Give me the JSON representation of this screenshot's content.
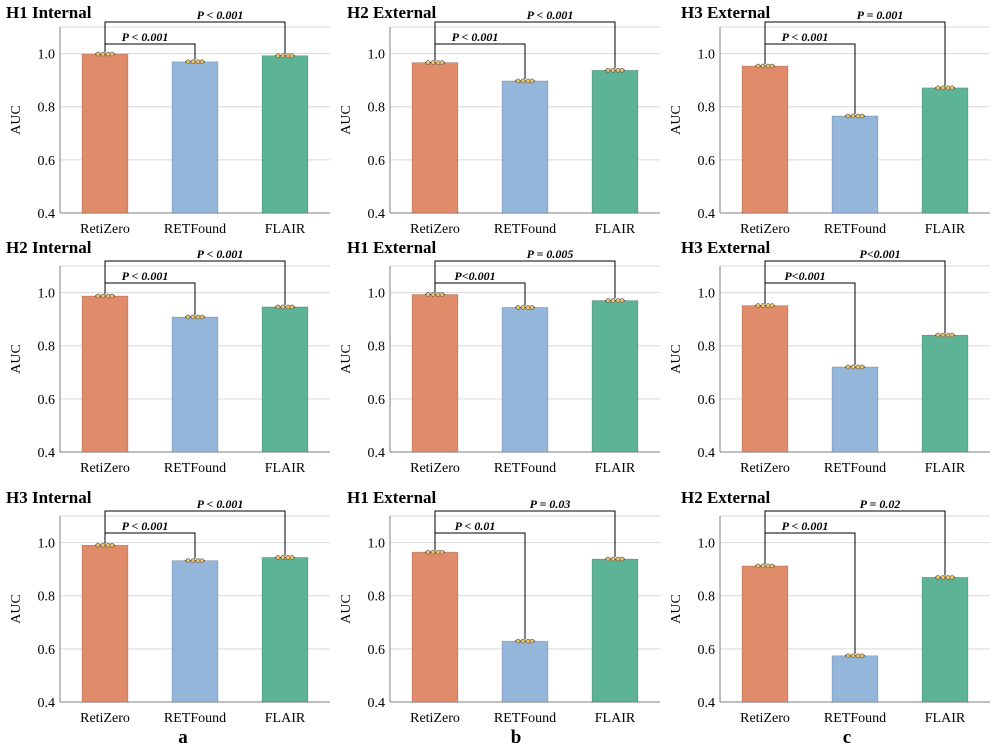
{
  "colors": {
    "RetiZero": "#e08b69",
    "RETFound": "#94b6da",
    "FLAIR": "#5db396",
    "grid": "#d9d9d9",
    "axis": "#7f7f7f",
    "bracket": "#000000"
  },
  "column_labels": [
    "a",
    "b",
    "c"
  ],
  "chart_data": [
    {
      "type": "bar",
      "title": "H1 Internal",
      "ylabel": "AUC",
      "ylim": [
        0.4,
        1.1
      ],
      "yticks": [
        "0.4",
        "0.6",
        "0.8",
        "1.0"
      ],
      "categories": [
        "RetiZero",
        "RETFound",
        "FLAIR"
      ],
      "values": [
        0.998,
        0.969,
        0.992
      ],
      "annotations": [
        {
          "from": 0,
          "to": 1,
          "label": "P < 0.001",
          "level": "low"
        },
        {
          "from": 0,
          "to": 2,
          "label": "P < 0.001",
          "level": "high"
        }
      ]
    },
    {
      "type": "bar",
      "title": "H2 External",
      "ylabel": "AUC",
      "ylim": [
        0.4,
        1.1
      ],
      "yticks": [
        "0.4",
        "0.6",
        "0.8",
        "1.0"
      ],
      "categories": [
        "RetiZero",
        "RETFound",
        "FLAIR"
      ],
      "values": [
        0.966,
        0.897,
        0.937
      ],
      "annotations": [
        {
          "from": 0,
          "to": 1,
          "label": "P < 0.001",
          "level": "low"
        },
        {
          "from": 0,
          "to": 2,
          "label": "P < 0.001",
          "level": "high"
        }
      ]
    },
    {
      "type": "bar",
      "title": "H3 External",
      "ylabel": "AUC",
      "ylim": [
        0.4,
        1.1
      ],
      "yticks": [
        "0.4",
        "0.6",
        "0.8",
        "1.0"
      ],
      "categories": [
        "RetiZero",
        "RETFound",
        "FLAIR"
      ],
      "values": [
        0.953,
        0.765,
        0.871
      ],
      "annotations": [
        {
          "from": 0,
          "to": 1,
          "label": "P < 0.001",
          "level": "low"
        },
        {
          "from": 0,
          "to": 2,
          "label": "P = 0.001",
          "level": "high"
        }
      ]
    },
    {
      "type": "bar",
      "title": "H2 Internal",
      "ylabel": "AUC",
      "ylim": [
        0.4,
        1.1
      ],
      "yticks": [
        "0.4",
        "0.6",
        "0.8",
        "1.0"
      ],
      "categories": [
        "RetiZero",
        "RETFound",
        "FLAIR"
      ],
      "values": [
        0.987,
        0.908,
        0.946
      ],
      "annotations": [
        {
          "from": 0,
          "to": 1,
          "label": "P < 0.001",
          "level": "low"
        },
        {
          "from": 0,
          "to": 2,
          "label": "P < 0.001",
          "level": "high"
        }
      ]
    },
    {
      "type": "bar",
      "title": "H1 External",
      "ylabel": "AUC",
      "ylim": [
        0.4,
        1.1
      ],
      "yticks": [
        "0.4",
        "0.6",
        "0.8",
        "1.0"
      ],
      "categories": [
        "RetiZero",
        "RETFound",
        "FLAIR"
      ],
      "values": [
        0.993,
        0.944,
        0.97
      ],
      "annotations": [
        {
          "from": 0,
          "to": 1,
          "label": "P<0.001",
          "level": "low"
        },
        {
          "from": 0,
          "to": 2,
          "label": "P = 0.005",
          "level": "high"
        }
      ]
    },
    {
      "type": "bar",
      "title": "H3 External",
      "ylabel": "AUC",
      "ylim": [
        0.4,
        1.1
      ],
      "yticks": [
        "0.4",
        "0.6",
        "0.8",
        "1.0"
      ],
      "categories": [
        "RetiZero",
        "RETFound",
        "FLAIR"
      ],
      "values": [
        0.951,
        0.72,
        0.84
      ],
      "annotations": [
        {
          "from": 0,
          "to": 1,
          "label": "P<0.001",
          "level": "low"
        },
        {
          "from": 0,
          "to": 2,
          "label": "P<0.001",
          "level": "high"
        }
      ]
    },
    {
      "type": "bar",
      "title": "H3 Internal",
      "ylabel": "AUC",
      "ylim": [
        0.4,
        1.1
      ],
      "yticks": [
        "0.4",
        "0.6",
        "0.8",
        "1.0"
      ],
      "categories": [
        "RetiZero",
        "RETFound",
        "FLAIR"
      ],
      "values": [
        0.99,
        0.932,
        0.944
      ],
      "annotations": [
        {
          "from": 0,
          "to": 1,
          "label": "P < 0.001",
          "level": "low"
        },
        {
          "from": 0,
          "to": 2,
          "label": "P < 0.001",
          "level": "high"
        }
      ]
    },
    {
      "type": "bar",
      "title": "H1 External",
      "ylabel": "AUC",
      "ylim": [
        0.4,
        1.1
      ],
      "yticks": [
        "0.4",
        "0.6",
        "0.8",
        "1.0"
      ],
      "categories": [
        "RetiZero",
        "RETFound",
        "FLAIR"
      ],
      "values": [
        0.964,
        0.629,
        0.938
      ],
      "annotations": [
        {
          "from": 0,
          "to": 1,
          "label": "P < 0.01",
          "level": "low"
        },
        {
          "from": 0,
          "to": 2,
          "label": "P = 0.03",
          "level": "high"
        }
      ]
    },
    {
      "type": "bar",
      "title": "H2 External",
      "ylabel": "AUC",
      "ylim": [
        0.4,
        1.1
      ],
      "yticks": [
        "0.4",
        "0.6",
        "0.8",
        "1.0"
      ],
      "categories": [
        "RetiZero",
        "RETFound",
        "FLAIR"
      ],
      "values": [
        0.912,
        0.574,
        0.869
      ],
      "annotations": [
        {
          "from": 0,
          "to": 1,
          "label": "P < 0.001",
          "level": "low"
        },
        {
          "from": 0,
          "to": 2,
          "label": "P = 0.02",
          "level": "high"
        }
      ]
    }
  ]
}
